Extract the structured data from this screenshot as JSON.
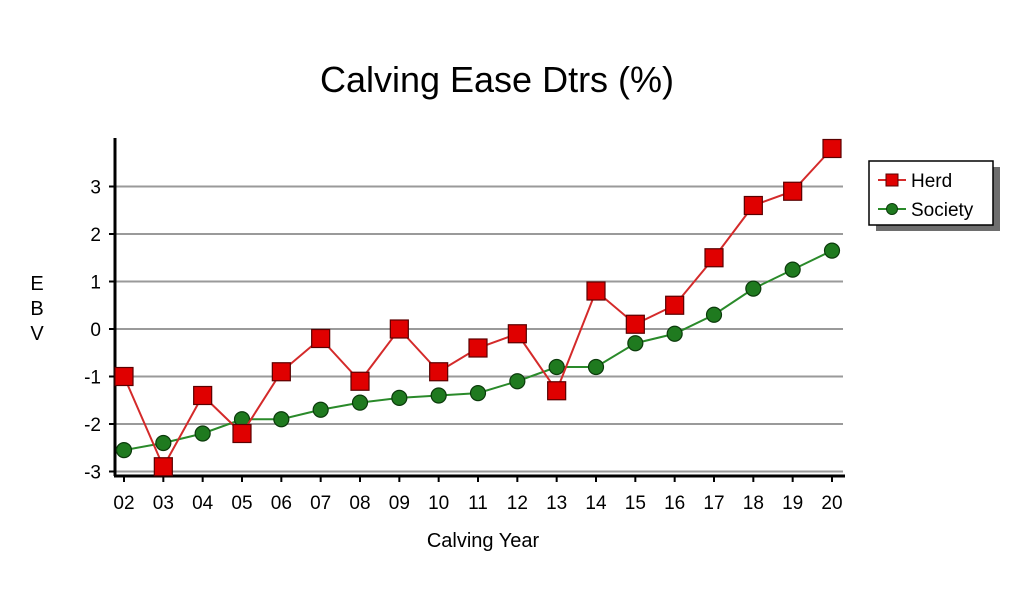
{
  "chart_data": {
    "type": "line",
    "title": "Calving Ease Dtrs (%)",
    "xlabel": "Calving Year",
    "ylabel": "EBV",
    "categories": [
      "02",
      "03",
      "04",
      "05",
      "06",
      "07",
      "08",
      "09",
      "10",
      "11",
      "12",
      "13",
      "14",
      "15",
      "16",
      "17",
      "18",
      "19",
      "20"
    ],
    "yticks": [
      "3",
      "2",
      "1",
      "0",
      "-1",
      "-2",
      "-3"
    ],
    "ylim": [
      -3.1,
      4.0
    ],
    "grid": true,
    "legend_position": "top-right",
    "series": [
      {
        "name": "Herd",
        "color": "#e00000",
        "line_color": "#d42a2a",
        "marker": "square",
        "values": [
          -1.0,
          -2.9,
          -1.4,
          -2.2,
          -0.9,
          -0.2,
          -1.1,
          0.0,
          -0.9,
          -0.4,
          -0.1,
          -1.3,
          0.8,
          0.1,
          0.5,
          1.5,
          2.6,
          2.9,
          3.8
        ]
      },
      {
        "name": "Society",
        "color": "#1f7a1f",
        "line_color": "#2a8a2a",
        "marker": "circle",
        "values": [
          -2.55,
          -2.4,
          -2.2,
          -1.9,
          -1.9,
          -1.7,
          -1.55,
          -1.45,
          -1.4,
          -1.35,
          -1.1,
          -0.8,
          -0.8,
          -0.3,
          -0.1,
          0.3,
          0.85,
          1.25,
          1.65
        ]
      }
    ]
  }
}
